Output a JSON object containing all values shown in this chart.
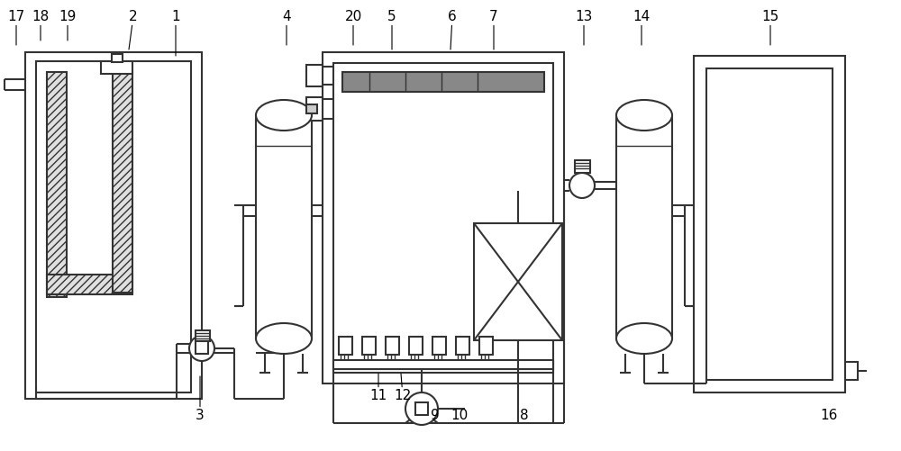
{
  "bg": "#ffffff",
  "lc": "#333333",
  "lw": 1.5,
  "lw2": 1.0,
  "labels": [
    [
      1,
      195,
      62,
      195,
      18
    ],
    [
      2,
      143,
      55,
      148,
      18
    ],
    [
      3,
      222,
      418,
      222,
      462
    ],
    [
      4,
      318,
      50,
      318,
      18
    ],
    [
      5,
      435,
      55,
      435,
      18
    ],
    [
      6,
      500,
      55,
      502,
      18
    ],
    [
      7,
      548,
      55,
      548,
      18
    ],
    [
      8,
      582,
      462,
      582,
      462
    ],
    [
      9,
      483,
      462,
      483,
      462
    ],
    [
      10,
      510,
      462,
      510,
      462
    ],
    [
      11,
      420,
      415,
      420,
      440
    ],
    [
      12,
      445,
      415,
      447,
      440
    ],
    [
      13,
      648,
      50,
      648,
      18
    ],
    [
      14,
      712,
      50,
      712,
      18
    ],
    [
      15,
      855,
      50,
      855,
      18
    ],
    [
      16,
      920,
      462,
      920,
      462
    ],
    [
      17,
      18,
      50,
      18,
      18
    ],
    [
      18,
      45,
      45,
      45,
      18
    ],
    [
      19,
      75,
      45,
      75,
      18
    ],
    [
      20,
      392,
      50,
      392,
      18
    ]
  ]
}
